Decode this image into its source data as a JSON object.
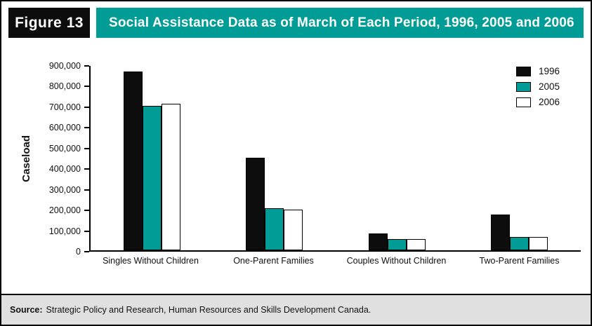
{
  "figure_label": "Figure 13",
  "title": "Social Assistance Data as of March of Each Period, 1996, 2005 and 2006",
  "source_label": "Source:",
  "source_text": "Strategic Policy and Research, Human Resources and Skills Development Canada.",
  "colors": {
    "accent_teal": "#009C95",
    "bar_black": "#0d0d0d",
    "bar_white": "#ffffff",
    "footer_bg": "#e0e0e0"
  },
  "chart_data": {
    "type": "bar",
    "categories": [
      "Singles Without Children",
      "One-Parent Families",
      "Couples Without Children",
      "Two-Parent Families"
    ],
    "series": [
      {
        "name": "1996",
        "color": "#0d0d0d",
        "values": [
          865000,
          447000,
          80000,
          172000
        ]
      },
      {
        "name": "2005",
        "color": "#009C95",
        "values": [
          700000,
          205000,
          55000,
          63000
        ]
      },
      {
        "name": "2006",
        "color": "#ffffff",
        "values": [
          710000,
          196000,
          54000,
          63000
        ]
      }
    ],
    "title": "Social Assistance Data as of March of Each Period, 1996, 2005 and 2006",
    "xlabel": "",
    "ylabel": "Caseload",
    "ylim": [
      0,
      900000
    ],
    "ytick_step": 100000,
    "grid": false,
    "legend_position": "top-right"
  }
}
